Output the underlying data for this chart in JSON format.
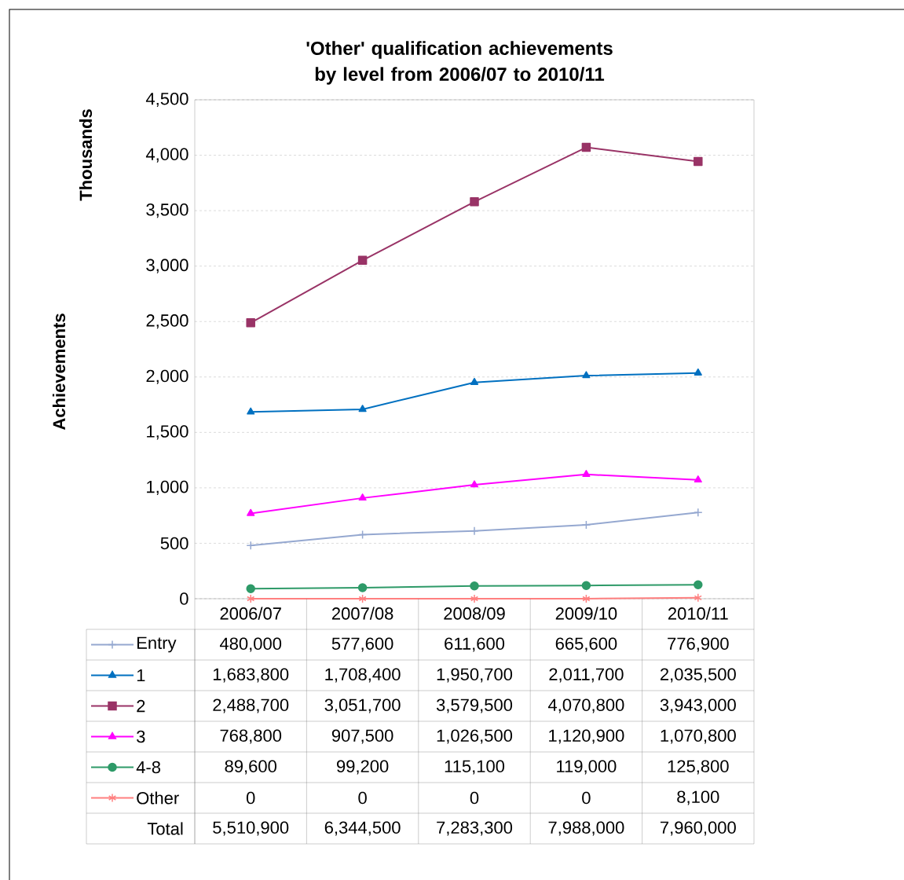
{
  "chart_data": {
    "type": "line",
    "title": "'Other' qualification achievements by level from 2006/07 to 2010/11",
    "ylabel": "Achievements",
    "annotations": [
      "Thousands",
      "480,000",
      "577,600",
      "611,600",
      "665,600",
      "776,900",
      "1,683,800",
      "1,708,400",
      "1,950,700",
      "2,011,700",
      "2,035,500",
      "2,488,700",
      "3,051,700",
      "3,579,500",
      "4,070,800",
      "3,943,000",
      "768,800",
      "907,500",
      "1,026,500",
      "1,120,900",
      "1,070,800",
      "89,600",
      "99,200",
      "115,100",
      "119,000",
      "125,800",
      "0",
      "0",
      "0",
      "0",
      "8,100",
      "Total",
      "5,510,900",
      "6,344,500",
      "7,283,300",
      "7,988,000",
      "7,960,000"
    ],
    "categories": [
      "2006/07",
      "2007/08",
      "2008/09",
      "2009/10",
      "2010/11"
    ],
    "ylim": [
      0,
      4500
    ],
    "yticks": [
      0,
      500,
      {
        "value": 1000,
        "label": "1,000"
      },
      {
        "value": 1500,
        "label": "1,500"
      },
      {
        "value": 2000,
        "label": "2,000"
      },
      {
        "value": 2500,
        "label": "2,500"
      },
      {
        "value": 3000,
        "label": "3,000"
      },
      {
        "value": 3500,
        "label": "3,500"
      },
      {
        "value": 4000,
        "label": "4,000"
      },
      {
        "value": 4500,
        "label": "4,500"
      }
    ],
    "grid": "y",
    "legend": "bottom",
    "line_style": "solid",
    "series": [
      {
        "name": "Entry",
        "color": "#95a8d0",
        "marker": "plus",
        "values": [
          480,
          578,
          612,
          666,
          777
        ]
      },
      {
        "name": "1",
        "color": "#0070c0",
        "marker": "triangle",
        "values": [
          1684,
          1708,
          1951,
          2012,
          2036
        ]
      },
      {
        "name": "2",
        "color": "#993366",
        "marker": "square",
        "values": [
          2489,
          3052,
          3580,
          4071,
          3943
        ]
      },
      {
        "name": "3",
        "color": "#ff00ff",
        "marker": "triangle",
        "values": [
          769,
          908,
          1027,
          1121,
          1071
        ]
      },
      {
        "name": "4-8",
        "color": "#2e9a68",
        "marker": "circle",
        "values": [
          90,
          99,
          115,
          119,
          126
        ]
      },
      {
        "name": "Other",
        "color": "#ff8080",
        "marker": "cross",
        "values": [
          0,
          0,
          0,
          0,
          8
        ]
      }
    ]
  }
}
